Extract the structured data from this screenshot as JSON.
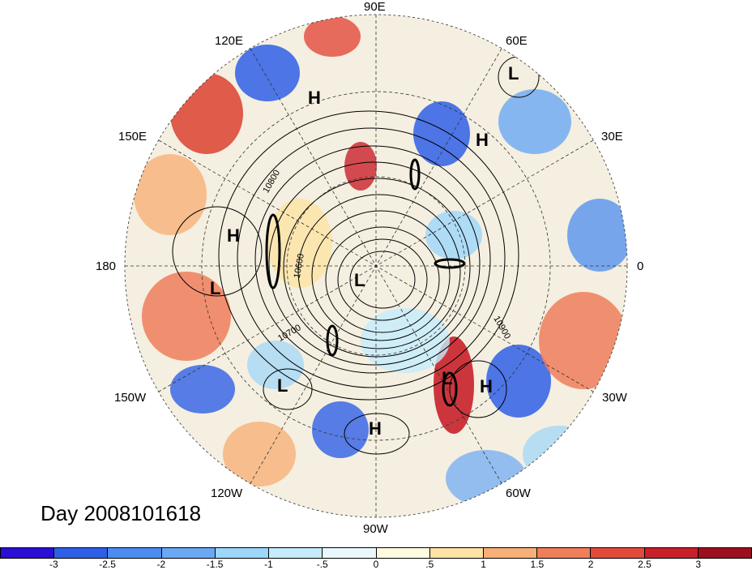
{
  "map": {
    "title": "Day 2008101618",
    "longitude_labels": [
      "90E",
      "60E",
      "30E",
      "0",
      "30W",
      "60W",
      "90W",
      "120W",
      "150W",
      "180",
      "150E",
      "120E"
    ],
    "contour_labels": [
      "10800",
      "10600",
      "10700",
      "10900"
    ],
    "pressure_centers": [
      "H",
      "L",
      "H",
      "L",
      "H",
      "L",
      "L",
      "L",
      "H",
      "H"
    ],
    "colorbar": {
      "colors": [
        "#2a0fd4",
        "#2f5fe6",
        "#4c8cf0",
        "#6aa8f4",
        "#9cd6fa",
        "#c6ecfc",
        "#eaf8fe",
        "#fffbe0",
        "#fde3a4",
        "#f7b077",
        "#ef7e5a",
        "#e44a3c",
        "#c9202a",
        "#9e0f1e"
      ],
      "labels": [
        "-3",
        "-2.5",
        "-2",
        "-1.5",
        "-1",
        "-.5",
        "0",
        ".5",
        "1",
        "1.5",
        "2",
        "2.5",
        "3"
      ]
    }
  }
}
